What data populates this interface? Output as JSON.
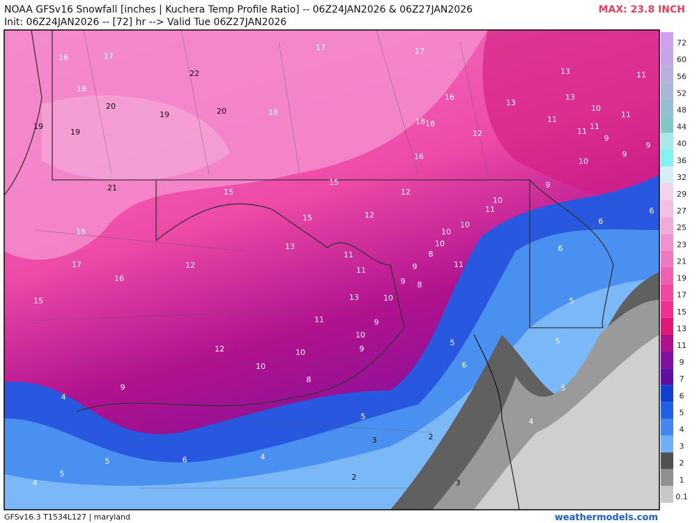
{
  "header": {
    "title": "NOAA GFSv16 Snowfall [inches | Kuchera Temp Profile Ratio] -- 06Z24JAN2026 & 06Z27JAN2026",
    "subtitle": "Init: 06Z24JAN2026 -- [72] hr --> Valid Tue 06Z27JAN2026",
    "max": "MAX: 23.8 INCH"
  },
  "colorbar": {
    "levels": [
      72,
      60,
      56,
      52,
      48,
      44,
      40,
      36,
      32,
      29,
      27,
      25,
      23,
      21,
      19,
      17,
      15,
      13,
      11,
      9,
      7,
      6,
      5,
      4,
      3,
      2,
      1,
      0.1
    ],
    "colors": [
      "#cf9ff0",
      "#c3a6e8",
      "#b6afe0",
      "#a5b8d8",
      "#92c0d0",
      "#80c8c8",
      "#a8e8e8",
      "#80f2f2",
      "#d6eef8",
      "#f2d2ea",
      "#f4c0e2",
      "#f2aad8",
      "#f092cf",
      "#f078c2",
      "#f060b2",
      "#f048a2",
      "#f03090",
      "#e01878",
      "#b0108e",
      "#8010a0",
      "#6010a0",
      "#1040d0",
      "#2060e8",
      "#4088f0",
      "#70b0f8",
      "#505050",
      "#909090",
      "#c8c8c8"
    ]
  },
  "map_labels": [
    16,
    17,
    22,
    17,
    17,
    13,
    11,
    18,
    20,
    19,
    20,
    18,
    16,
    13,
    13,
    10,
    11,
    19,
    19,
    18,
    18,
    12,
    11,
    11,
    11,
    9,
    9,
    9,
    16,
    10,
    21,
    15,
    15,
    12,
    10,
    11,
    9,
    6,
    15,
    12,
    10,
    6,
    18,
    10,
    10,
    13,
    11,
    8,
    6,
    17,
    12,
    11,
    11,
    9,
    16,
    9,
    8,
    5,
    15,
    13,
    10,
    11,
    9,
    10,
    5,
    5,
    12,
    10,
    9,
    6,
    10,
    8,
    9,
    5,
    4,
    5,
    4,
    3,
    2,
    5,
    6,
    4,
    5,
    4,
    2,
    3
  ],
  "footer": {
    "left": "GFSv16.3 T1534L127 | maryland",
    "right": "weathermodels.com"
  }
}
